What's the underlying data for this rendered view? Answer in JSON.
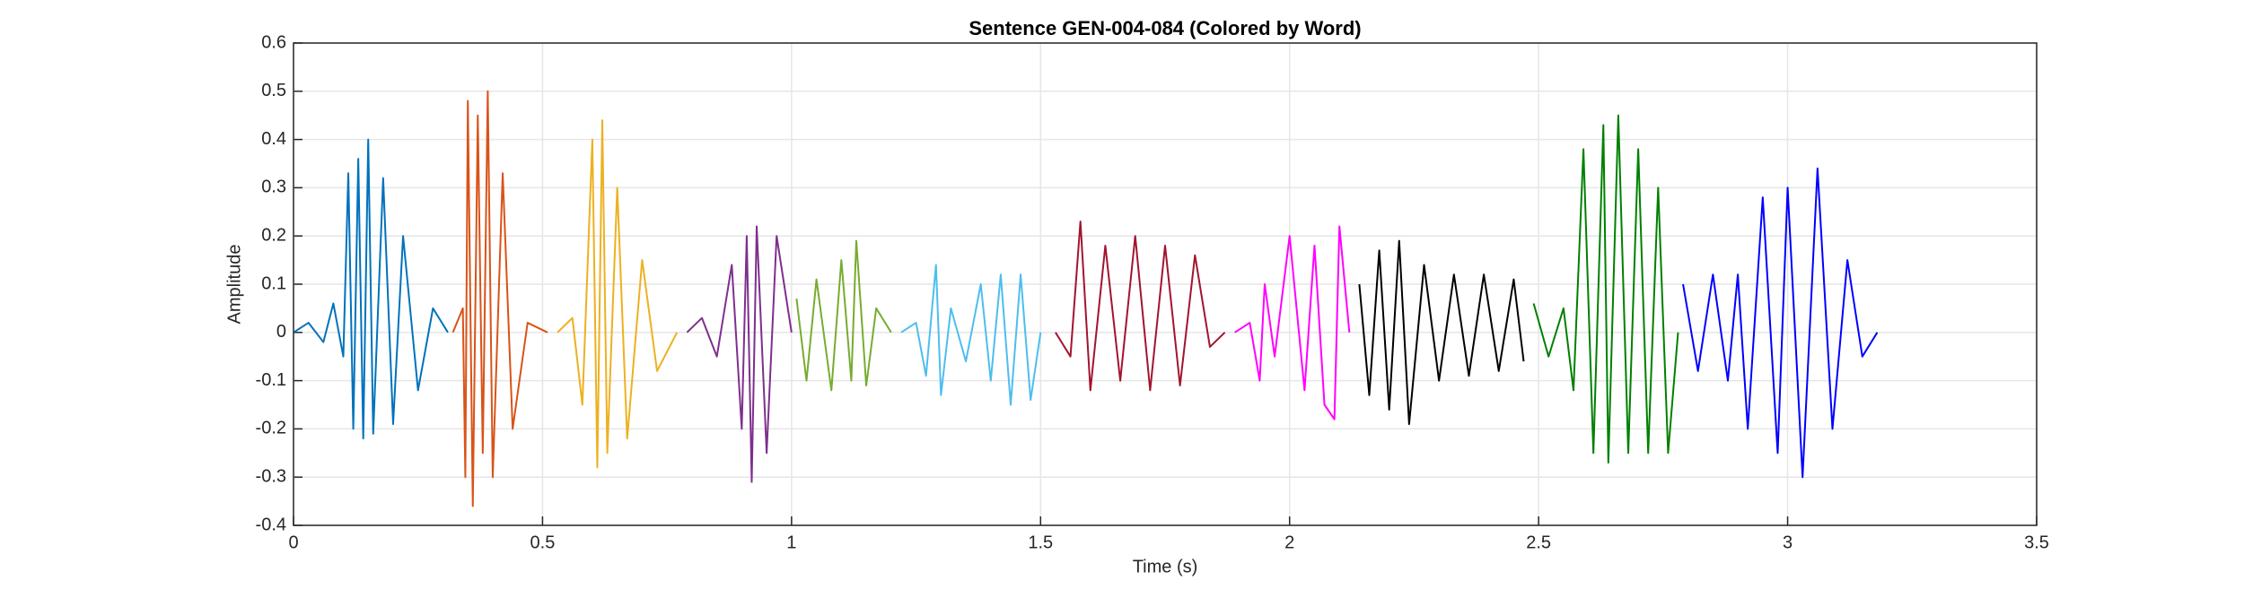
{
  "chart_data": {
    "type": "line",
    "title": "Sentence GEN-004-084 (Colored by Word)",
    "x_label": "Time (s)",
    "y_label": "Amplitude",
    "xlim": [
      0,
      3.5
    ],
    "xticks": [
      0,
      0.5,
      1,
      1.5,
      2,
      2.5,
      3,
      3.5
    ],
    "ylim": [
      -0.4,
      0.6
    ],
    "yticks": [
      -0.4,
      -0.3,
      -0.2,
      -0.1,
      0,
      0.1,
      0.2,
      0.3,
      0.4,
      0.5,
      0.6
    ],
    "grid": true,
    "series": [
      {
        "color": "#0072BD",
        "x": [
          0,
          0.03,
          0.06,
          0.08,
          0.1,
          0.11,
          0.12,
          0.13,
          0.14,
          0.15,
          0.16,
          0.18,
          0.2,
          0.22,
          0.25,
          0.28,
          0.31
        ],
        "values": [
          0,
          0.02,
          -0.02,
          0.06,
          -0.05,
          0.33,
          -0.2,
          0.36,
          -0.22,
          0.4,
          -0.21,
          0.32,
          -0.19,
          0.2,
          -0.12,
          0.05,
          0
        ]
      },
      {
        "color": "#D95319",
        "x": [
          0.32,
          0.34,
          0.345,
          0.35,
          0.36,
          0.37,
          0.38,
          0.39,
          0.4,
          0.42,
          0.44,
          0.47,
          0.51
        ],
        "values": [
          0,
          0.05,
          -0.3,
          0.48,
          -0.36,
          0.45,
          -0.25,
          0.5,
          -0.3,
          0.33,
          -0.2,
          0.02,
          0
        ]
      },
      {
        "color": "#EDB120",
        "x": [
          0.53,
          0.56,
          0.58,
          0.6,
          0.61,
          0.62,
          0.63,
          0.65,
          0.67,
          0.7,
          0.73,
          0.77
        ],
        "values": [
          0,
          0.03,
          -0.15,
          0.4,
          -0.28,
          0.44,
          -0.25,
          0.3,
          -0.22,
          0.15,
          -0.08,
          0
        ]
      },
      {
        "color": "#7E2F8E",
        "x": [
          0.79,
          0.82,
          0.85,
          0.88,
          0.9,
          0.91,
          0.92,
          0.93,
          0.95,
          0.97,
          1.0
        ],
        "values": [
          0,
          0.03,
          -0.05,
          0.14,
          -0.2,
          0.2,
          -0.31,
          0.22,
          -0.25,
          0.2,
          0
        ]
      },
      {
        "color": "#77AC30",
        "x": [
          1.01,
          1.03,
          1.05,
          1.08,
          1.1,
          1.12,
          1.13,
          1.15,
          1.17,
          1.2
        ],
        "values": [
          0.07,
          -0.1,
          0.11,
          -0.12,
          0.15,
          -0.1,
          0.19,
          -0.11,
          0.05,
          0
        ]
      },
      {
        "color": "#4DBEEE",
        "x": [
          1.22,
          1.25,
          1.27,
          1.29,
          1.3,
          1.32,
          1.35,
          1.38,
          1.4,
          1.42,
          1.44,
          1.46,
          1.48,
          1.5
        ],
        "values": [
          0,
          0.02,
          -0.09,
          0.14,
          -0.13,
          0.05,
          -0.06,
          0.1,
          -0.1,
          0.12,
          -0.15,
          0.12,
          -0.14,
          0
        ]
      },
      {
        "color": "#A2142F",
        "x": [
          1.53,
          1.56,
          1.58,
          1.6,
          1.63,
          1.66,
          1.69,
          1.72,
          1.75,
          1.78,
          1.81,
          1.84,
          1.87
        ],
        "values": [
          0,
          -0.05,
          0.23,
          -0.12,
          0.18,
          -0.1,
          0.2,
          -0.12,
          0.18,
          -0.11,
          0.16,
          -0.03,
          0
        ]
      },
      {
        "color": "#FF00FF",
        "x": [
          1.89,
          1.92,
          1.94,
          1.95,
          1.97,
          2.0,
          2.03,
          2.05,
          2.07,
          2.09,
          2.1,
          2.12
        ],
        "values": [
          0,
          0.02,
          -0.1,
          0.1,
          -0.05,
          0.2,
          -0.12,
          0.18,
          -0.15,
          -0.18,
          0.22,
          0
        ]
      },
      {
        "color": "#000000",
        "x": [
          2.14,
          2.16,
          2.18,
          2.2,
          2.22,
          2.24,
          2.27,
          2.3,
          2.33,
          2.36,
          2.39,
          2.42,
          2.45,
          2.47
        ],
        "values": [
          0.1,
          -0.13,
          0.17,
          -0.16,
          0.19,
          -0.19,
          0.14,
          -0.1,
          0.12,
          -0.09,
          0.12,
          -0.08,
          0.11,
          -0.06
        ]
      },
      {
        "color": "#008000",
        "x": [
          2.49,
          2.52,
          2.55,
          2.57,
          2.59,
          2.61,
          2.63,
          2.64,
          2.66,
          2.68,
          2.7,
          2.72,
          2.74,
          2.76,
          2.78
        ],
        "values": [
          0.06,
          -0.05,
          0.05,
          -0.12,
          0.38,
          -0.25,
          0.43,
          -0.27,
          0.45,
          -0.25,
          0.38,
          -0.25,
          0.3,
          -0.25,
          0
        ]
      },
      {
        "color": "#0000FF",
        "x": [
          2.79,
          2.82,
          2.85,
          2.88,
          2.9,
          2.92,
          2.95,
          2.98,
          3.0,
          3.03,
          3.06,
          3.09,
          3.12,
          3.15,
          3.18
        ],
        "values": [
          0.1,
          -0.08,
          0.12,
          -0.1,
          0.12,
          -0.2,
          0.28,
          -0.25,
          0.3,
          -0.3,
          0.34,
          -0.2,
          0.15,
          -0.05,
          0
        ]
      }
    ]
  }
}
